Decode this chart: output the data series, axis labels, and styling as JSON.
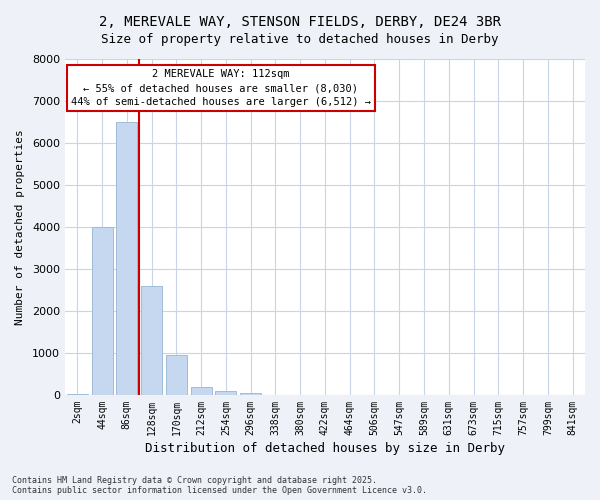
{
  "title_line1": "2, MEREVALE WAY, STENSON FIELDS, DERBY, DE24 3BR",
  "title_line2": "Size of property relative to detached houses in Derby",
  "xlabel": "Distribution of detached houses by size in Derby",
  "ylabel": "Number of detached properties",
  "categories": [
    "2sqm",
    "44sqm",
    "86sqm",
    "128sqm",
    "170sqm",
    "212sqm",
    "254sqm",
    "296sqm",
    "338sqm",
    "380sqm",
    "422sqm",
    "464sqm",
    "506sqm",
    "547sqm",
    "589sqm",
    "631sqm",
    "673sqm",
    "715sqm",
    "757sqm",
    "799sqm",
    "841sqm"
  ],
  "bar_heights": [
    30,
    4000,
    6500,
    2600,
    950,
    200,
    100,
    50,
    0,
    0,
    0,
    0,
    0,
    0,
    0,
    0,
    0,
    0,
    0,
    0,
    0
  ],
  "bar_color": "#c5d8f0",
  "bar_edge_color": "#a0bcd8",
  "vline_x": 3,
  "vline_color": "#cc0000",
  "annotation_text": "2 MEREVALE WAY: 112sqm\n← 55% of detached houses are smaller (8,030)\n44% of semi-detached houses are larger (6,512) →",
  "annotation_box_color": "#ffffff",
  "annotation_box_edge_color": "#cc0000",
  "ylim": [
    0,
    8000
  ],
  "yticks": [
    0,
    1000,
    2000,
    3000,
    4000,
    5000,
    6000,
    7000,
    8000
  ],
  "bg_color": "#eef2f8",
  "plot_bg_color": "#ffffff",
  "grid_color": "#c8d4e8",
  "footnote": "Contains HM Land Registry data © Crown copyright and database right 2025.\nContains public sector information licensed under the Open Government Licence v3.0."
}
